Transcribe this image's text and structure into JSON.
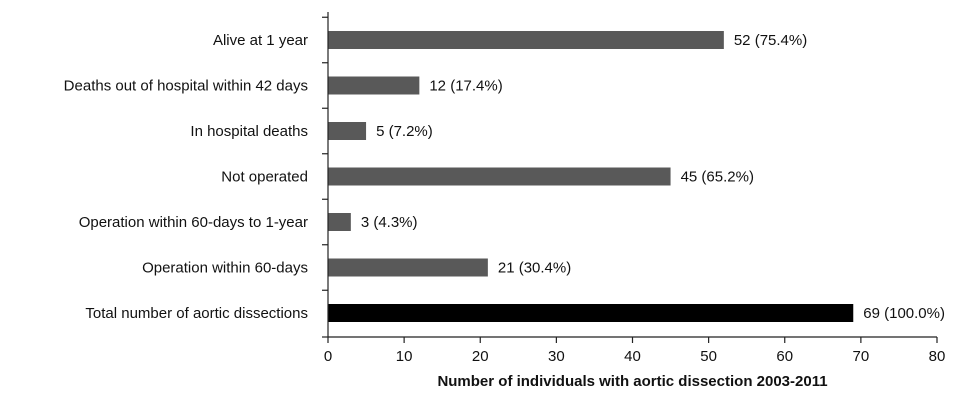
{
  "chart_data": {
    "type": "bar",
    "orientation": "horizontal",
    "categories": [
      "Alive at 1 year",
      "Deaths out of hospital within 42 days",
      "In hospital  deaths",
      "Not operated",
      "Operation within 60-days to 1-year",
      "Operation within 60-days",
      "Total number of aortic dissections"
    ],
    "values": [
      52,
      12,
      5,
      45,
      3,
      21,
      69
    ],
    "value_labels": [
      "52 (75.4%)",
      "12 (17.4%)",
      "5 (7.2%)",
      "45 (65.2%)",
      "3 (4.3%)",
      "21 (30.4%)",
      "69 (100.0%)"
    ],
    "bar_colors": [
      "#595959",
      "#595959",
      "#595959",
      "#595959",
      "#595959",
      "#595959",
      "#000000"
    ],
    "xlabel": "Number of individuals  with aortic dissection 2003-2011",
    "ylabel": "",
    "xlim": [
      0,
      80
    ],
    "xticks": [
      0,
      10,
      20,
      30,
      40,
      50,
      60,
      70,
      80
    ],
    "grid": false,
    "legend": "none"
  }
}
